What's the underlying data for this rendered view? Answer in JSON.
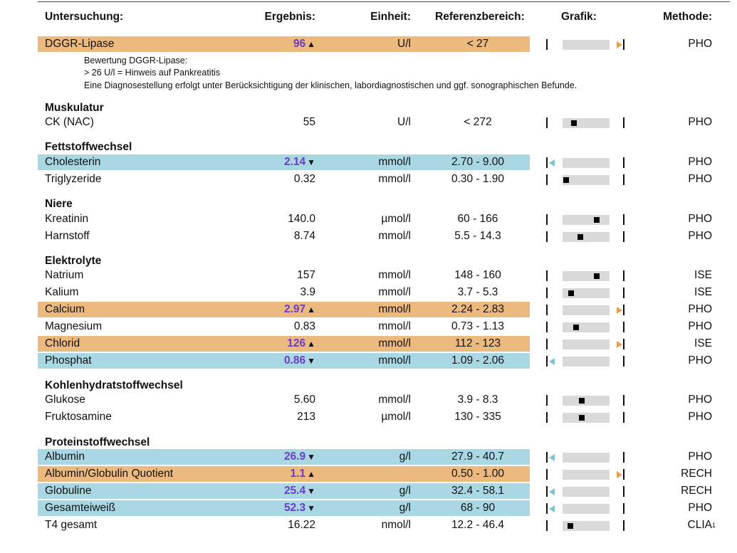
{
  "header": {
    "untersuchung": "Untersuchung:",
    "ergebnis": "Ergebnis:",
    "einheit": "Einheit:",
    "referenz": "Referenzbereich:",
    "grafik": "Grafik:",
    "methode": "Methode:"
  },
  "rows": [
    {
      "name": "DGGR-Lipase",
      "value": "96",
      "flag": "high",
      "arrow": "▲",
      "unit": "U/l",
      "ref": "< 27",
      "method": "PHO",
      "marker": "high"
    },
    {
      "name": "CK (NAC)",
      "value": "55",
      "flag": "",
      "arrow": "",
      "unit": "U/l",
      "ref": "< 272",
      "method": "PHO",
      "marker": 0.2
    },
    {
      "name": "Cholesterin",
      "value": "2.14",
      "flag": "low",
      "arrow": "▼",
      "unit": "mmol/l",
      "ref": "2.70 - 9.00",
      "method": "PHO",
      "marker": "low"
    },
    {
      "name": "Triglyzeride",
      "value": "0.32",
      "flag": "",
      "arrow": "",
      "unit": "mmol/l",
      "ref": "0.30 - 1.90",
      "method": "PHO",
      "marker": 0.01
    },
    {
      "name": "Kreatinin",
      "value": "140.0",
      "flag": "",
      "arrow": "",
      "unit": "µmol/l",
      "ref": "60 - 166",
      "method": "PHO",
      "marker": 0.75
    },
    {
      "name": "Harnstoff",
      "value": "8.74",
      "flag": "",
      "arrow": "",
      "unit": "mmol/l",
      "ref": "5.5 - 14.3",
      "method": "PHO",
      "marker": 0.37
    },
    {
      "name": "Natrium",
      "value": "157",
      "flag": "",
      "arrow": "",
      "unit": "mmol/l",
      "ref": "148 - 160",
      "method": "ISE",
      "marker": 0.75
    },
    {
      "name": "Kalium",
      "value": "3.9",
      "flag": "",
      "arrow": "",
      "unit": "mmol/l",
      "ref": "3.7 - 5.3",
      "method": "ISE",
      "marker": 0.13
    },
    {
      "name": "Calcium",
      "value": "2.97",
      "flag": "high",
      "arrow": "▲",
      "unit": "mmol/l",
      "ref": "2.24 - 2.83",
      "method": "PHO",
      "marker": "high"
    },
    {
      "name": "Magnesium",
      "value": "0.83",
      "flag": "",
      "arrow": "",
      "unit": "mmol/l",
      "ref": "0.73 - 1.13",
      "method": "PHO",
      "marker": 0.25
    },
    {
      "name": "Chlorid",
      "value": "126",
      "flag": "high",
      "arrow": "▲",
      "unit": "mmol/l",
      "ref": "112 - 123",
      "method": "ISE",
      "marker": "high"
    },
    {
      "name": "Phosphat",
      "value": "0.86",
      "flag": "low",
      "arrow": "▼",
      "unit": "mmol/l",
      "ref": "1.09 - 2.06",
      "method": "PHO",
      "marker": "low"
    },
    {
      "name": "Glukose",
      "value": "5.60",
      "flag": "",
      "arrow": "",
      "unit": "mmol/l",
      "ref": "3.9 - 8.3",
      "method": "PHO",
      "marker": 0.39
    },
    {
      "name": "Fruktosamine",
      "value": "213",
      "flag": "",
      "arrow": "",
      "unit": "µmol/l",
      "ref": "130 - 335",
      "method": "PHO",
      "marker": 0.4
    },
    {
      "name": "Albumin",
      "value": "26.9",
      "flag": "low",
      "arrow": "▼",
      "unit": "g/l",
      "ref": "27.9 - 40.7",
      "method": "PHO",
      "marker": "low"
    },
    {
      "name": "Albumin/Globulin Quotient",
      "value": "1.1",
      "flag": "high",
      "arrow": "▲",
      "unit": "",
      "ref": "0.50 - 1.00",
      "method": "RECH",
      "marker": "high"
    },
    {
      "name": "Globuline",
      "value": "25.4",
      "flag": "low",
      "arrow": "▼",
      "unit": "g/l",
      "ref": "32.4 - 58.1",
      "method": "RECH",
      "marker": "low"
    },
    {
      "name": "Gesamteiweiß",
      "value": "52.3",
      "flag": "low",
      "arrow": "▼",
      "unit": "g/l",
      "ref": "68 - 90",
      "method": "PHO",
      "marker": "low"
    },
    {
      "name": "T4 gesamt",
      "value": "16.22",
      "flag": "",
      "arrow": "",
      "unit": "nmol/l",
      "ref": "12.2 - 46.4",
      "method": "CLIA",
      "marker": 0.12
    }
  ],
  "sections": [
    {
      "title": "Muskulatur"
    },
    {
      "title": "Fettstoffwechsel"
    },
    {
      "title": "Niere"
    },
    {
      "title": "Elektrolyte"
    },
    {
      "title": "Kohlenhydratstoffwechsel"
    },
    {
      "title": "Proteinstoffwechsel"
    }
  ],
  "note": {
    "line1": "Bewertung DGGR-Lipase:",
    "line2": "> 26 U/l      = Hinweis auf Pankreatitis",
    "line3": "Eine Diagnosestellung erfolgt unter Berücksichtigung der klinischen, labordiagnostischen und ggf. sonographischen Befunde."
  },
  "footnote": "1",
  "colors": {
    "high": "#ecb97f",
    "low": "#a9d8e4",
    "flag_text": "#6b3cc8"
  }
}
